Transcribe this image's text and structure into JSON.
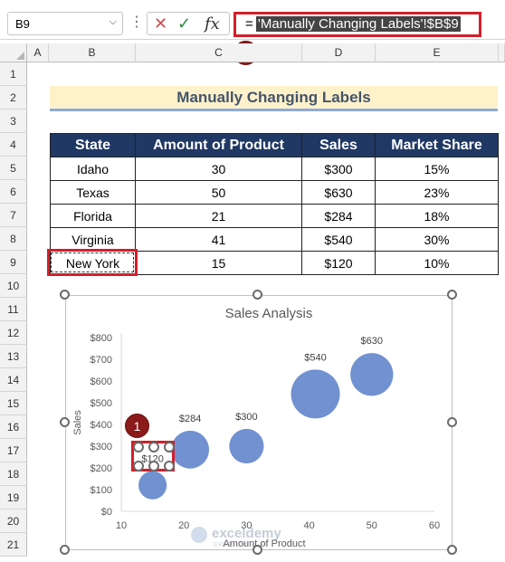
{
  "formula_bar": {
    "name_box": "B9",
    "formula_prefix": "=",
    "formula_text": "'Manually Changing Labels'!$B$9",
    "fx_label": "fx",
    "cancel_glyph": "✕",
    "enter_glyph": "✓"
  },
  "badges": {
    "one": "1",
    "two": "2"
  },
  "columns": [
    "A",
    "B",
    "C",
    "D",
    "E"
  ],
  "rows": [
    "1",
    "2",
    "3",
    "4",
    "5",
    "6",
    "7",
    "8",
    "9",
    "10",
    "11",
    "12",
    "13",
    "14",
    "15",
    "16",
    "17",
    "18",
    "19",
    "20",
    "21"
  ],
  "sheet_title": "Manually Changing Labels",
  "table": {
    "headers": [
      "State",
      "Amount of Product",
      "Sales",
      "Market Share"
    ],
    "rows": [
      [
        "Idaho",
        "30",
        "$300",
        "15%"
      ],
      [
        "Texas",
        "50",
        "$630",
        "23%"
      ],
      [
        "Florida",
        "21",
        "$284",
        "18%"
      ],
      [
        "Virginia",
        "41",
        "$540",
        "30%"
      ],
      [
        "New York",
        "15",
        "$120",
        "10%"
      ]
    ]
  },
  "watermark": {
    "name": "exceldemy",
    "tagline": "EXCEL · DATA · BI"
  },
  "chart_data": {
    "type": "scatter",
    "subtype": "bubble",
    "title": "Sales Analysis",
    "xlabel": "Amount of Product",
    "ylabel": "Sales",
    "xlim": [
      10,
      60
    ],
    "ylim": [
      0,
      800
    ],
    "x_ticks": [
      "10",
      "20",
      "30",
      "40",
      "50",
      "60"
    ],
    "y_ticks": [
      "$0",
      "$100",
      "$200",
      "$300",
      "$400",
      "$500",
      "$600",
      "$700",
      "$800"
    ],
    "bubble_color": "#7191d0",
    "points": [
      {
        "x": 30,
        "y": 300,
        "size": 0.15,
        "label": "$300"
      },
      {
        "x": 50,
        "y": 630,
        "size": 0.23,
        "label": "$630"
      },
      {
        "x": 21,
        "y": 284,
        "size": 0.18,
        "label": "$284"
      },
      {
        "x": 41,
        "y": 540,
        "size": 0.3,
        "label": "$540"
      },
      {
        "x": 15,
        "y": 120,
        "size": 0.1,
        "label": "$120"
      }
    ]
  }
}
